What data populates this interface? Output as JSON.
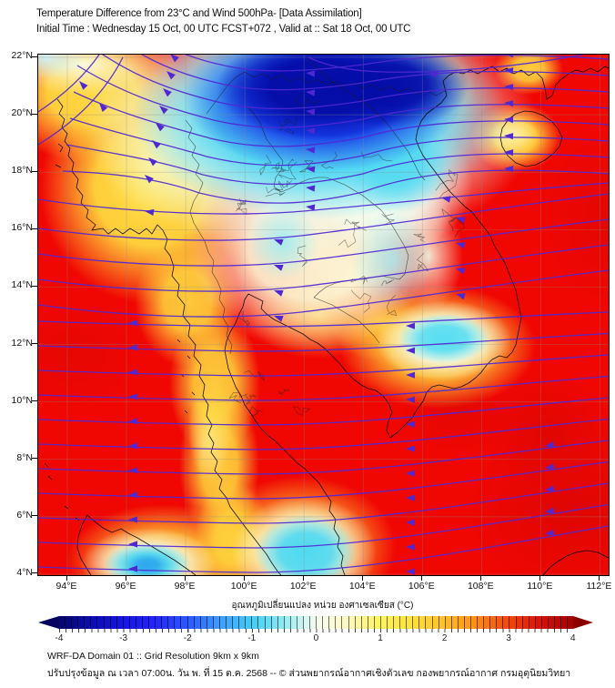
{
  "header": {
    "title": "Temperature Difference from 23°C and Wind 500hPa- [Data Assimilation]",
    "subtitle": "Initial Time : Wednesday 15 Oct, 00 UTC FCST+072 , Valid at ::  Sat 18 Oct, 00 UTC"
  },
  "map": {
    "lat_ticks": [
      "22°N",
      "20°N",
      "18°N",
      "16°N",
      "14°N",
      "12°N",
      "10°N",
      "8°N",
      "6°N",
      "4°N"
    ],
    "lon_ticks": [
      "94°E",
      "96°E",
      "98°E",
      "100°E",
      "102°E",
      "104°E",
      "106°E",
      "108°E",
      "110°E",
      "112°E"
    ]
  },
  "colorbar": {
    "title": "อุณหภูมิเปลี่ยนแปลง หน่วย องศาเซลเซียส (°C)",
    "tick_labels": [
      "-4",
      "-3",
      "-2",
      "-1",
      "0",
      "1",
      "2",
      "3",
      "4"
    ],
    "segments": 80,
    "stops": [
      "#06066e",
      "#0d0db8",
      "#1717e8",
      "#2626fc",
      "#2e5aff",
      "#3f9fff",
      "#42cdf5",
      "#93ecf3",
      "#f6fdf0",
      "#fdf9c4",
      "#fdf45c",
      "#ffe23c",
      "#ffbf28",
      "#ff8e17",
      "#f24b0c",
      "#db1208",
      "#a50303"
    ],
    "left_arrow_color": "#05055e",
    "right_arrow_color": "#8a0100"
  },
  "style": {
    "streamline_color": "#4f28d2",
    "coastline_color": "#000000",
    "grid_color": "rgba(140,140,140,0.4)",
    "base_field_color": "#f00702"
  },
  "footer": {
    "line1": "WRF-DA Domain 01 :: Grid Resolution 9km x 9km",
    "line2": "ปรับปรุงข้อมูล ณ เวลา 07:00น. วัน พ. ที่ 15 ต.ค. 2568 -- © ส่วนพยากรณ์อากาศเชิงตัวเลข กองพยากรณ์อากาศ กรมอุตุนิยมวิทยา"
  }
}
